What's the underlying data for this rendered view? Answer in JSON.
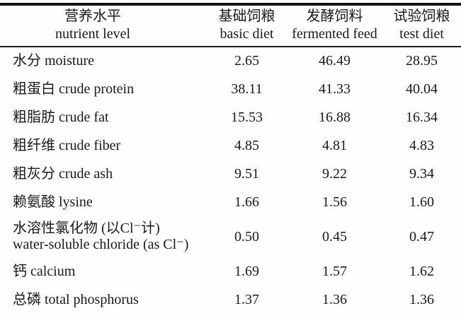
{
  "table": {
    "columns": [
      {
        "zh": "营养水平",
        "en": "nutrient level"
      },
      {
        "zh": "基础饲粮",
        "en": "basic diet"
      },
      {
        "zh": "发酵饲料",
        "en": "fermented feed"
      },
      {
        "zh": "试验饲粮",
        "en": "test diet"
      }
    ],
    "rows": [
      {
        "label": "水分 moisture",
        "values": [
          "2.65",
          "46.49",
          "28.95"
        ]
      },
      {
        "label": "粗蛋白 crude protein",
        "values": [
          "38.11",
          "41.33",
          "40.04"
        ]
      },
      {
        "label": "粗脂肪 crude fat",
        "values": [
          "15.53",
          "16.88",
          "16.34"
        ]
      },
      {
        "label": "粗纤维 crude fiber",
        "values": [
          "4.85",
          "4.81",
          "4.83"
        ]
      },
      {
        "label": "粗灰分 crude ash",
        "values": [
          "9.51",
          "9.22",
          "9.34"
        ]
      },
      {
        "label": "赖氨酸 lysine",
        "values": [
          "1.66",
          "1.56",
          "1.60"
        ]
      },
      {
        "label_line1": "水溶性氯化物 (以Cl⁻计)",
        "label_line2": "water-soluble chloride (as Cl⁻)",
        "values": [
          "0.50",
          "0.45",
          "0.47"
        ]
      },
      {
        "label": "钙 calcium",
        "values": [
          "1.69",
          "1.57",
          "1.62"
        ]
      },
      {
        "label": "总磷 total phosphorus",
        "values": [
          "1.37",
          "1.36",
          "1.36"
        ]
      }
    ]
  },
  "chart_data": {
    "type": "table",
    "title": "",
    "columns": [
      "营养水平 nutrient level",
      "基础饲粮 basic diet",
      "发酵饲料 fermented feed",
      "试验饲粮 test diet"
    ],
    "rows": [
      {
        "nutrient": "水分 moisture",
        "basic_diet": 2.65,
        "fermented_feed": 46.49,
        "test_diet": 28.95
      },
      {
        "nutrient": "粗蛋白 crude protein",
        "basic_diet": 38.11,
        "fermented_feed": 41.33,
        "test_diet": 40.04
      },
      {
        "nutrient": "粗脂肪 crude fat",
        "basic_diet": 15.53,
        "fermented_feed": 16.88,
        "test_diet": 16.34
      },
      {
        "nutrient": "粗纤维 crude fiber",
        "basic_diet": 4.85,
        "fermented_feed": 4.81,
        "test_diet": 4.83
      },
      {
        "nutrient": "粗灰分 crude ash",
        "basic_diet": 9.51,
        "fermented_feed": 9.22,
        "test_diet": 9.34
      },
      {
        "nutrient": "赖氨酸 lysine",
        "basic_diet": 1.66,
        "fermented_feed": 1.56,
        "test_diet": 1.6
      },
      {
        "nutrient": "水溶性氯化物 (以Cl⁻计) water-soluble chloride (as Cl⁻)",
        "basic_diet": 0.5,
        "fermented_feed": 0.45,
        "test_diet": 0.47
      },
      {
        "nutrient": "钙 calcium",
        "basic_diet": 1.69,
        "fermented_feed": 1.57,
        "test_diet": 1.62
      },
      {
        "nutrient": "总磷 total phosphorus",
        "basic_diet": 1.37,
        "fermented_feed": 1.36,
        "test_diet": 1.36
      }
    ]
  }
}
